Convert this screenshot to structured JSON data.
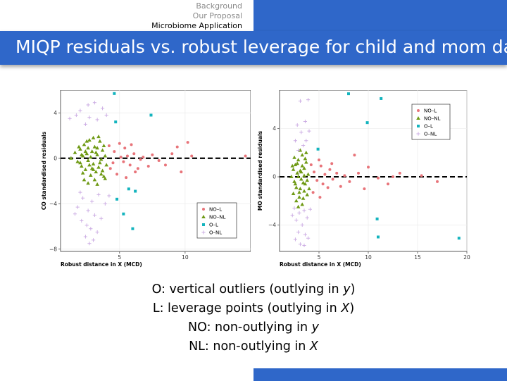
{
  "nav": {
    "items": [
      "Background",
      "Our Proposal",
      "Microbiome Application"
    ],
    "active_index": 2
  },
  "title": "MIQP residuals vs. robust leverage for child and mom data",
  "colors": {
    "accent": "#2f67c9",
    "NO-L": "#e8747a",
    "NO-NL": "#6f9a15",
    "O-L": "#14b4be",
    "O-NL": "#c9a8e2"
  },
  "definitions": [
    {
      "pre": "O: vertical outliers (outlying in ",
      "var": "y",
      "post": ")"
    },
    {
      "pre": "L: leverage points (outlying in ",
      "var": "X",
      "post": ")"
    },
    {
      "pre": "NO: non-outlying in ",
      "var": "y",
      "post": ""
    },
    {
      "pre": "NL: non-outlying in ",
      "var": "X",
      "post": ""
    }
  ],
  "chart_data": [
    {
      "type": "scatter",
      "xlabel": "Robust distance in X (MCD)",
      "ylabel": "CO standardised residuals",
      "xlim": [
        0.5,
        15
      ],
      "ylim": [
        -8.2,
        6
      ],
      "xticks": [
        5,
        10
      ],
      "yticks": [
        -8,
        -4,
        0,
        4
      ],
      "ytick_labels": [
        "−8",
        "−4",
        "0",
        "4"
      ],
      "hline": 0,
      "legend": {
        "position": "bottom-right",
        "entries": [
          "NO–L",
          "NO–NL",
          "O–L",
          "O–NL"
        ]
      },
      "series": [
        {
          "name": "NO–L",
          "points": [
            [
              4.2,
              1.1
            ],
            [
              4.6,
              0.6
            ],
            [
              5.0,
              1.3
            ],
            [
              5.3,
              -0.3
            ],
            [
              5.6,
              0.2
            ],
            [
              5.8,
              -0.6
            ],
            [
              6.1,
              0.4
            ],
            [
              6.4,
              -0.9
            ],
            [
              6.8,
              0.1
            ],
            [
              7.2,
              -0.7
            ],
            [
              7.5,
              0.3
            ],
            [
              8.0,
              -0.2
            ],
            [
              8.5,
              -0.6
            ],
            [
              9.0,
              0.4
            ],
            [
              9.4,
              1.0
            ],
            [
              9.7,
              -1.2
            ],
            [
              10.2,
              1.4
            ],
            [
              10.5,
              0.2
            ],
            [
              4.8,
              -1.4
            ],
            [
              5.5,
              -1.7
            ],
            [
              6.2,
              -1.2
            ],
            [
              5.1,
              0.1
            ],
            [
              4.5,
              -0.4
            ],
            [
              5.9,
              1.2
            ],
            [
              6.6,
              -0.1
            ],
            [
              14.6,
              0.2
            ],
            [
              4.3,
              -0.9
            ],
            [
              5.4,
              0.9
            ]
          ]
        },
        {
          "name": "NO–NL",
          "points": [
            [
              1.3,
              0.0
            ],
            [
              1.6,
              0.5
            ],
            [
              1.8,
              -0.3
            ],
            [
              2.0,
              0.8
            ],
            [
              2.1,
              -0.7
            ],
            [
              2.2,
              0.2
            ],
            [
              2.3,
              1.2
            ],
            [
              2.4,
              -1.0
            ],
            [
              2.5,
              0.4
            ],
            [
              2.6,
              -0.2
            ],
            [
              2.7,
              1.6
            ],
            [
              2.8,
              -1.5
            ],
            [
              2.9,
              0.6
            ],
            [
              3.0,
              -0.5
            ],
            [
              3.1,
              1.0
            ],
            [
              3.2,
              -1.2
            ],
            [
              3.3,
              0.3
            ],
            [
              3.4,
              -0.8
            ],
            [
              3.5,
              1.5
            ],
            [
              3.6,
              -0.1
            ],
            [
              3.7,
              0.7
            ],
            [
              3.8,
              -1.6
            ],
            [
              3.9,
              0.2
            ],
            [
              4.0,
              -0.6
            ],
            [
              2.2,
              -1.3
            ],
            [
              2.5,
              1.5
            ],
            [
              2.8,
              0.1
            ],
            [
              3.1,
              -1.9
            ],
            [
              3.4,
              1.9
            ],
            [
              3.7,
              -1.1
            ],
            [
              2.0,
              -0.4
            ],
            [
              2.6,
              0.9
            ],
            [
              3.0,
              -1.0
            ],
            [
              3.3,
              0.9
            ],
            [
              3.6,
              -1.4
            ],
            [
              2.4,
              0.6
            ],
            [
              2.9,
              -0.9
            ],
            [
              3.2,
              0.5
            ],
            [
              3.5,
              -0.4
            ],
            [
              2.1,
              0.3
            ],
            [
              2.7,
              -0.6
            ],
            [
              3.8,
              1.1
            ],
            [
              3.9,
              -1.8
            ],
            [
              2.3,
              -1.9
            ],
            [
              3.0,
              1.8
            ],
            [
              2.6,
              -2.2
            ],
            [
              3.3,
              -2.3
            ],
            [
              1.9,
              1.0
            ]
          ]
        },
        {
          "name": "O–L",
          "points": [
            [
              4.6,
              5.7
            ],
            [
              4.7,
              3.2
            ],
            [
              7.4,
              3.8
            ],
            [
              5.7,
              -2.7
            ],
            [
              6.2,
              -2.9
            ],
            [
              4.8,
              -3.6
            ],
            [
              5.3,
              -4.9
            ],
            [
              6.0,
              -6.2
            ]
          ]
        },
        {
          "name": "O–NL",
          "points": [
            [
              2.6,
              4.7
            ],
            [
              3.1,
              4.9
            ],
            [
              2.0,
              4.2
            ],
            [
              2.7,
              3.6
            ],
            [
              1.7,
              3.8
            ],
            [
              3.3,
              3.4
            ],
            [
              3.7,
              4.4
            ],
            [
              2.4,
              3.0
            ],
            [
              1.2,
              3.5
            ],
            [
              4.0,
              3.8
            ],
            [
              2.2,
              -3.5
            ],
            [
              2.9,
              -3.8
            ],
            [
              3.4,
              -3.2
            ],
            [
              1.8,
              -4.3
            ],
            [
              2.6,
              -4.6
            ],
            [
              3.1,
              -5.0
            ],
            [
              2.1,
              -5.5
            ],
            [
              3.6,
              -5.3
            ],
            [
              2.8,
              -6.2
            ],
            [
              2.4,
              -6.9
            ],
            [
              2.7,
              -7.5
            ],
            [
              3.0,
              -7.2
            ],
            [
              1.6,
              -4.9
            ],
            [
              3.9,
              -4.0
            ],
            [
              4.2,
              -3.3
            ],
            [
              2.5,
              -5.9
            ],
            [
              3.3,
              -6.5
            ],
            [
              2.0,
              -3.0
            ]
          ]
        }
      ]
    },
    {
      "type": "scatter",
      "xlabel": "Robust distance in X (MCD)",
      "ylabel": "MO standardised residuals",
      "xlim": [
        1,
        20
      ],
      "ylim": [
        -6.2,
        7.2
      ],
      "xticks": [
        5,
        10,
        15,
        20
      ],
      "yticks": [
        -4,
        0,
        4
      ],
      "ytick_labels": [
        "−4",
        "0",
        "4"
      ],
      "hline": 0,
      "legend": {
        "position": "top-right",
        "entries": [
          "NO–L",
          "NO–NL",
          "O–L",
          "O–NL"
        ]
      },
      "series": [
        {
          "name": "NO–L",
          "points": [
            [
              4.2,
              1.0
            ],
            [
              4.5,
              0.4
            ],
            [
              4.8,
              -0.3
            ],
            [
              5.0,
              1.4
            ],
            [
              5.2,
              0.9
            ],
            [
              5.4,
              -0.6
            ],
            [
              5.6,
              0.2
            ],
            [
              5.9,
              -0.9
            ],
            [
              6.1,
              0.6
            ],
            [
              6.4,
              -0.2
            ],
            [
              6.8,
              0.3
            ],
            [
              7.2,
              -0.8
            ],
            [
              7.6,
              0.1
            ],
            [
              8.1,
              -0.4
            ],
            [
              8.6,
              1.8
            ],
            [
              9.0,
              0.3
            ],
            [
              9.6,
              -1.0
            ],
            [
              10.0,
              0.8
            ],
            [
              11.0,
              -0.1
            ],
            [
              12.0,
              -0.6
            ],
            [
              12.5,
              0.0
            ],
            [
              13.2,
              0.3
            ],
            [
              15.4,
              0.1
            ],
            [
              17.0,
              -0.4
            ],
            [
              4.4,
              -1.3
            ],
            [
              5.1,
              -1.7
            ],
            [
              6.3,
              1.1
            ]
          ]
        },
        {
          "name": "NO–NL",
          "points": [
            [
              2.2,
              0.0
            ],
            [
              2.4,
              0.6
            ],
            [
              2.5,
              -0.4
            ],
            [
              2.6,
              1.0
            ],
            [
              2.7,
              -0.9
            ],
            [
              2.8,
              0.3
            ],
            [
              2.9,
              1.4
            ],
            [
              3.0,
              -1.3
            ],
            [
              3.1,
              0.5
            ],
            [
              3.2,
              -0.2
            ],
            [
              3.3,
              1.8
            ],
            [
              3.4,
              -1.8
            ],
            [
              3.5,
              0.7
            ],
            [
              3.6,
              -0.6
            ],
            [
              3.7,
              1.2
            ],
            [
              3.8,
              -1.5
            ],
            [
              3.9,
              0.2
            ],
            [
              4.0,
              -1.0
            ],
            [
              2.5,
              1.6
            ],
            [
              2.7,
              -2.0
            ],
            [
              2.9,
              0.0
            ],
            [
              3.1,
              -1.0
            ],
            [
              3.3,
              0.9
            ],
            [
              3.5,
              -1.2
            ],
            [
              3.7,
              2.0
            ],
            [
              2.6,
              -0.6
            ],
            [
              2.8,
              1.1
            ],
            [
              3.0,
              -1.7
            ],
            [
              3.2,
              0.4
            ],
            [
              3.4,
              -0.5
            ],
            [
              3.6,
              1.5
            ],
            [
              3.8,
              -0.3
            ],
            [
              2.4,
              -1.4
            ],
            [
              3.1,
              2.2
            ],
            [
              3.3,
              -2.3
            ],
            [
              2.9,
              -2.5
            ],
            [
              3.5,
              0.1
            ],
            [
              2.3,
              0.9
            ]
          ]
        },
        {
          "name": "O–L",
          "points": [
            [
              8.0,
              6.9
            ],
            [
              11.3,
              6.5
            ],
            [
              9.9,
              4.5
            ],
            [
              4.9,
              2.3
            ],
            [
              10.9,
              -3.5
            ],
            [
              11.0,
              -5.0
            ],
            [
              19.2,
              -5.1
            ]
          ]
        },
        {
          "name": "O–NL",
          "points": [
            [
              2.8,
              4.3
            ],
            [
              3.2,
              3.7
            ],
            [
              3.6,
              4.6
            ],
            [
              2.6,
              3.0
            ],
            [
              3.4,
              2.6
            ],
            [
              4.0,
              3.8
            ],
            [
              3.9,
              6.4
            ],
            [
              3.1,
              6.3
            ],
            [
              2.9,
              2.2
            ],
            [
              3.7,
              3.0
            ],
            [
              2.5,
              -2.6
            ],
            [
              3.0,
              -3.0
            ],
            [
              3.5,
              -2.8
            ],
            [
              2.7,
              -3.6
            ],
            [
              3.3,
              -4.0
            ],
            [
              3.8,
              -3.4
            ],
            [
              2.9,
              -4.6
            ],
            [
              3.6,
              -4.8
            ],
            [
              3.1,
              -5.6
            ],
            [
              3.5,
              -5.7
            ],
            [
              2.6,
              -5.2
            ],
            [
              4.1,
              -2.7
            ],
            [
              2.3,
              -3.2
            ],
            [
              3.9,
              -5.1
            ]
          ]
        }
      ]
    }
  ]
}
